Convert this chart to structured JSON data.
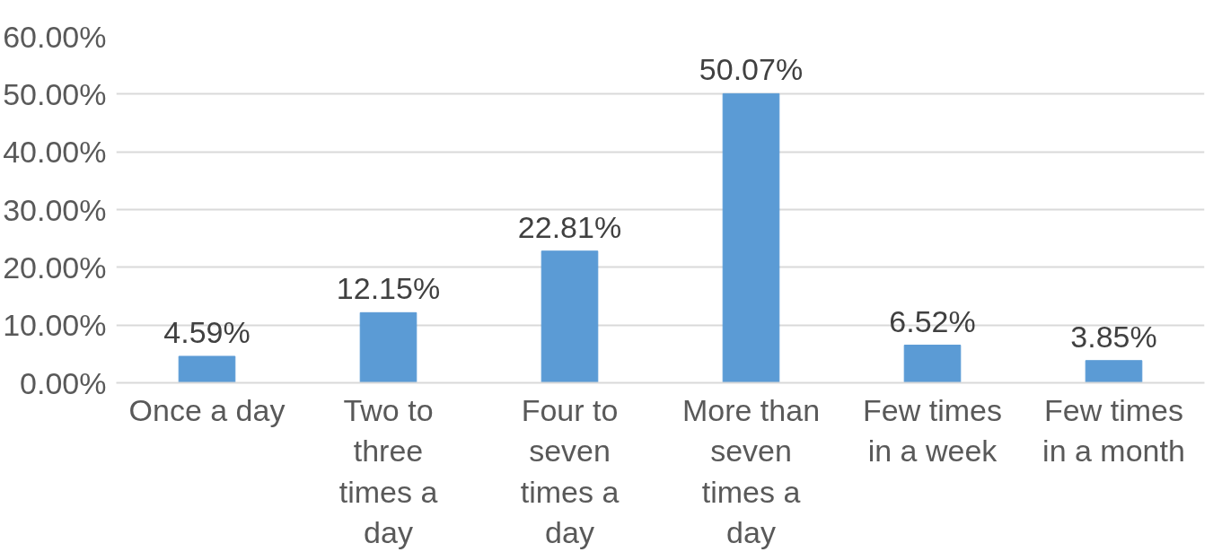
{
  "chart_data": {
    "type": "bar",
    "categories": [
      "Once a day",
      "Two to three times a day",
      "Four to seven times a day",
      "More than seven times a day",
      "Few times in a week",
      "Few times in a month"
    ],
    "values": [
      4.59,
      12.15,
      22.81,
      50.07,
      6.52,
      3.85
    ],
    "value_labels": [
      "4.59%",
      "12.15%",
      "22.81%",
      "50.07%",
      "6.52%",
      "3.85%"
    ],
    "color": "#5b9bd5",
    "ylim": [
      0,
      60
    ],
    "yticks": [
      {
        "value": 0,
        "label": "0.00%"
      },
      {
        "value": 10,
        "label": "10.00%"
      },
      {
        "value": 20,
        "label": "20.00%"
      },
      {
        "value": 30,
        "label": "30.00%"
      },
      {
        "value": 40,
        "label": "40.00%"
      },
      {
        "value": 50,
        "label": "50.00%"
      },
      {
        "value": 60,
        "label": "60.00%"
      }
    ],
    "grid": "y"
  }
}
